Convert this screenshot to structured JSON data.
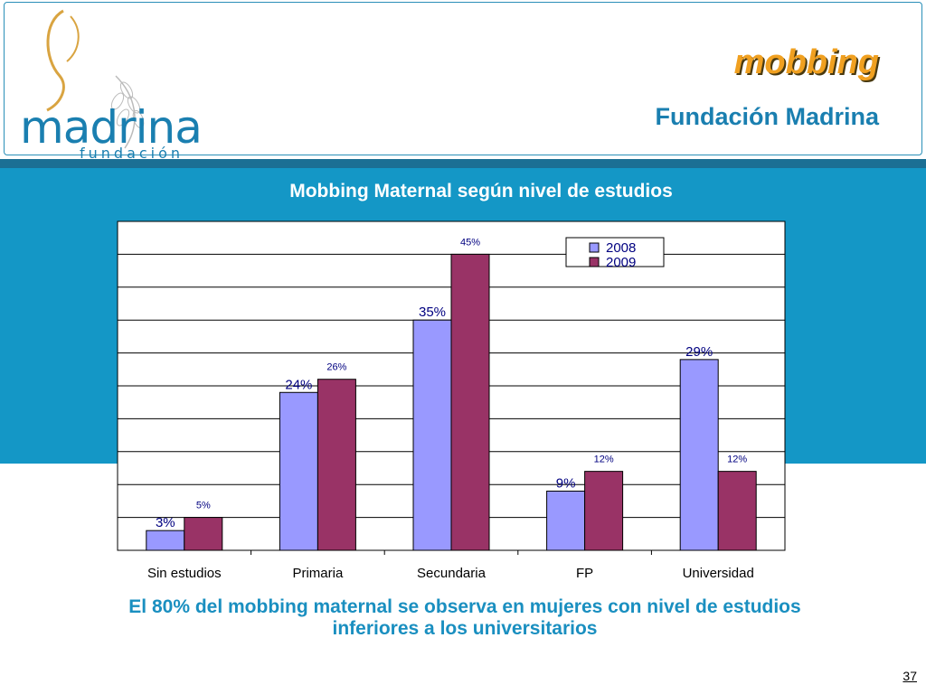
{
  "header": {
    "logo": {
      "word": "madrina",
      "sub": "fundación"
    },
    "title": "mobbing",
    "subtitle": "Fundación Madrina"
  },
  "chart_data": {
    "type": "bar",
    "title": "Mobbing Maternal según nivel de estudios",
    "categories": [
      "Sin estudios",
      "Primaria",
      "Secundaria",
      "FP",
      "Universidad"
    ],
    "series": [
      {
        "name": "2008",
        "values": [
          3,
          24,
          35,
          9,
          29
        ],
        "labels": [
          "3%",
          "24%",
          "35%",
          "9%",
          "29%"
        ],
        "color": "#9999ff"
      },
      {
        "name": "2009",
        "values": [
          5,
          26,
          45,
          12,
          12
        ],
        "labels": [
          "5%",
          "26%",
          "45%",
          "12%",
          "12%"
        ],
        "color": "#993366"
      }
    ],
    "ylim": [
      0,
      50
    ],
    "grid": true,
    "legend": "top-right",
    "xlabel": "",
    "ylabel": ""
  },
  "caption": "El 80% del mobbing maternal se observa en mujeres con nivel de estudios inferiores a los universitarios",
  "page_number": "37",
  "colors": {
    "band": "#1497c6",
    "accent": "#f0a020",
    "brand_blue": "#1a7fb0"
  }
}
